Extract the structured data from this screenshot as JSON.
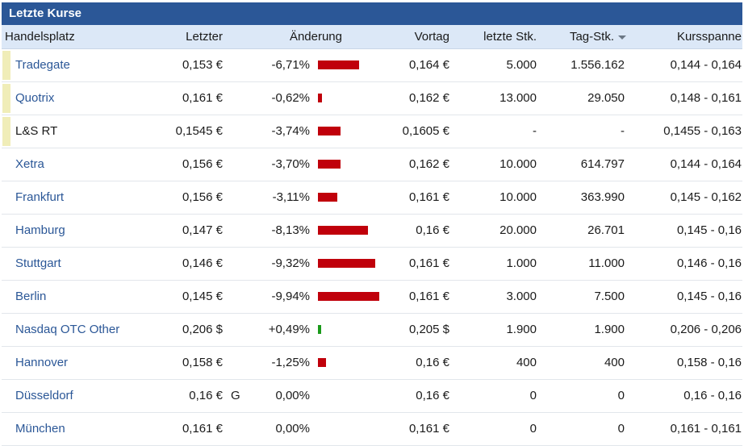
{
  "panel": {
    "title": "Letzte Kurse"
  },
  "headers": {
    "name": "Handelsplatz",
    "last": "Letzter",
    "change": "Änderung",
    "prev": "Vortag",
    "last_pieces": "letzte Stk.",
    "day_pieces": "Tag-Stk.",
    "range": "Kursspanne"
  },
  "colors": {
    "header_bg": "#2b5797",
    "negative_bar": "#c0000b",
    "positive_bar": "#1a9a1a",
    "link": "#2b5797"
  },
  "rows": [
    {
      "name": "Tradegate",
      "link": true,
      "marker": true,
      "last": "0,153 €",
      "flag": "",
      "change": "-6,71%",
      "change_value": -6.71,
      "prev": "0,164 €",
      "last_pieces": "5.000",
      "day_pieces": "1.556.162",
      "range": "0,144 - 0,164"
    },
    {
      "name": "Quotrix",
      "link": true,
      "marker": true,
      "last": "0,161 €",
      "flag": "",
      "change": "-0,62%",
      "change_value": -0.62,
      "prev": "0,162 €",
      "last_pieces": "13.000",
      "day_pieces": "29.050",
      "range": "0,148 - 0,161"
    },
    {
      "name": "L&S RT",
      "link": false,
      "marker": true,
      "last": "0,1545 €",
      "flag": "",
      "change": "-3,74%",
      "change_value": -3.74,
      "prev": "0,1605 €",
      "last_pieces": "-",
      "day_pieces": "-",
      "range": "0,1455 - 0,163"
    },
    {
      "name": "Xetra",
      "link": true,
      "marker": false,
      "last": "0,156 €",
      "flag": "",
      "change": "-3,70%",
      "change_value": -3.7,
      "prev": "0,162 €",
      "last_pieces": "10.000",
      "day_pieces": "614.797",
      "range": "0,144 - 0,164"
    },
    {
      "name": "Frankfurt",
      "link": true,
      "marker": false,
      "last": "0,156 €",
      "flag": "",
      "change": "-3,11%",
      "change_value": -3.11,
      "prev": "0,161 €",
      "last_pieces": "10.000",
      "day_pieces": "363.990",
      "range": "0,145 - 0,162"
    },
    {
      "name": "Hamburg",
      "link": true,
      "marker": false,
      "last": "0,147 €",
      "flag": "",
      "change": "-8,13%",
      "change_value": -8.13,
      "prev": "0,16 €",
      "last_pieces": "20.000",
      "day_pieces": "26.701",
      "range": "0,145 - 0,16"
    },
    {
      "name": "Stuttgart",
      "link": true,
      "marker": false,
      "last": "0,146 €",
      "flag": "",
      "change": "-9,32%",
      "change_value": -9.32,
      "prev": "0,161 €",
      "last_pieces": "1.000",
      "day_pieces": "11.000",
      "range": "0,146 - 0,16"
    },
    {
      "name": "Berlin",
      "link": true,
      "marker": false,
      "last": "0,145 €",
      "flag": "",
      "change": "-9,94%",
      "change_value": -9.94,
      "prev": "0,161 €",
      "last_pieces": "3.000",
      "day_pieces": "7.500",
      "range": "0,145 - 0,16"
    },
    {
      "name": "Nasdaq OTC Other",
      "link": true,
      "marker": false,
      "last": "0,206 $",
      "flag": "",
      "change": "+0,49%",
      "change_value": 0.49,
      "prev": "0,205 $",
      "last_pieces": "1.900",
      "day_pieces": "1.900",
      "range": "0,206 - 0,206"
    },
    {
      "name": "Hannover",
      "link": true,
      "marker": false,
      "last": "0,158 €",
      "flag": "",
      "change": "-1,25%",
      "change_value": -1.25,
      "prev": "0,16 €",
      "last_pieces": "400",
      "day_pieces": "400",
      "range": "0,158 - 0,16"
    },
    {
      "name": "Düsseldorf",
      "link": true,
      "marker": false,
      "last": "0,16 €",
      "flag": "G",
      "change": "0,00%",
      "change_value": 0,
      "prev": "0,16 €",
      "last_pieces": "0",
      "day_pieces": "0",
      "range": "0,16 - 0,16"
    },
    {
      "name": "München",
      "link": true,
      "marker": false,
      "last": "0,161 €",
      "flag": "",
      "change": "0,00%",
      "change_value": 0,
      "prev": "0,161 €",
      "last_pieces": "0",
      "day_pieces": "0",
      "range": "0,161 - 0,161"
    }
  ]
}
